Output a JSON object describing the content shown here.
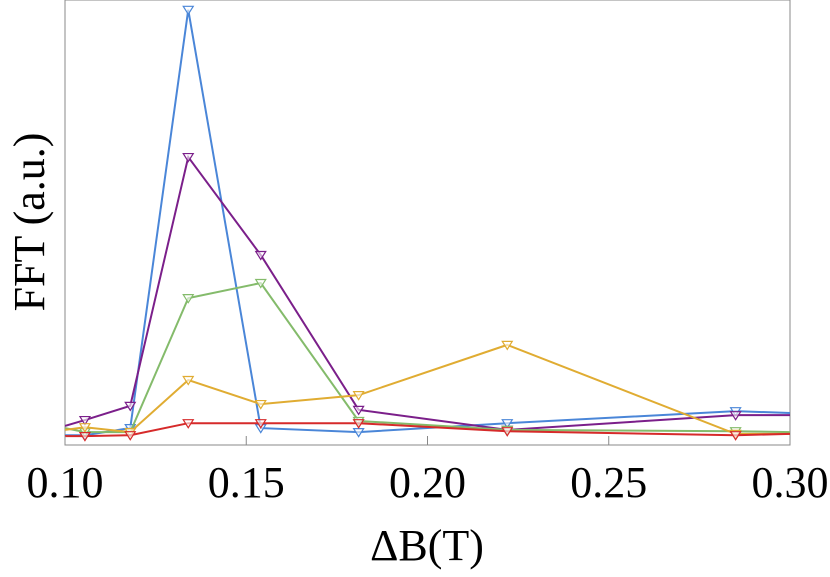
{
  "chart_data": {
    "type": "line",
    "x_label": "ΔB(T)",
    "y_label": "FFT (a.u.)",
    "x": [
      0.1,
      0.1055,
      0.118,
      0.134,
      0.154,
      0.181,
      0.222,
      0.285,
      0.3
    ],
    "series": [
      {
        "color": "#4a86d8",
        "values": [
          2.2,
          2.2,
          3.8,
          97.8,
          3.8,
          2.9,
          4.9,
          7.6,
          7.2
        ]
      },
      {
        "color": "#7b1f8a",
        "values": [
          4.3,
          5.6,
          8.8,
          64.7,
          42.7,
          7.9,
          3.4,
          6.7,
          6.7
        ]
      },
      {
        "color": "#84bb6b",
        "values": [
          3.8,
          2.9,
          2.9,
          33.0,
          36.4,
          5.4,
          3.4,
          3.1,
          2.9
        ]
      },
      {
        "color": "#e0ac32",
        "values": [
          3.4,
          4.0,
          2.9,
          14.6,
          9.2,
          11.2,
          22.5,
          2.5,
          2.5
        ]
      },
      {
        "color": "#d62a2a",
        "values": [
          2.0,
          2.0,
          2.2,
          4.9,
          4.9,
          4.9,
          3.1,
          2.2,
          2.5
        ]
      }
    ],
    "xlim": [
      0.1,
      0.3
    ],
    "xticks": [
      {
        "value": 0.1,
        "label": "0.10"
      },
      {
        "value": 0.15,
        "label": "0.15"
      },
      {
        "value": 0.2,
        "label": "0.20"
      },
      {
        "value": 0.25,
        "label": "0.25"
      },
      {
        "value": 0.3,
        "label": "0.30"
      }
    ],
    "ylim": [
      0,
      100
    ],
    "marker": "triangle-down"
  }
}
